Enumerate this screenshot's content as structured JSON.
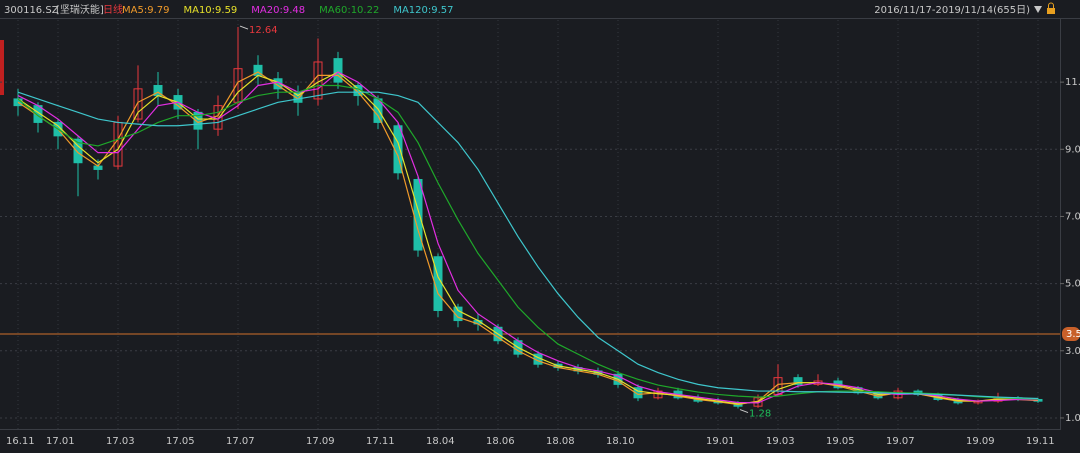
{
  "header": {
    "code": "300116.SZ",
    "stock_name": "[坚瑞沃能]",
    "period": "日线",
    "range": "2016/11/17-2019/11/14(655日)"
  },
  "chart_data": {
    "type": "candlestick",
    "categories": [
      "16.11",
      null,
      "17.01",
      null,
      null,
      "17.03",
      null,
      null,
      "17.05",
      null,
      null,
      "17.07",
      null,
      null,
      null,
      "17.09",
      null,
      null,
      "17.11",
      null,
      null,
      "18.04",
      null,
      null,
      "18.06",
      null,
      null,
      "18.08",
      null,
      null,
      "18.10",
      null,
      null,
      null,
      null,
      "19.01",
      null,
      null,
      "19.03",
      null,
      null,
      "19.05",
      null,
      null,
      "19.07",
      null,
      null,
      null,
      "19.09",
      null,
      null,
      "19.11"
    ],
    "open": [
      10.5,
      10.3,
      9.8,
      9.3,
      8.5,
      8.5,
      9.9,
      10.9,
      10.6,
      10.1,
      9.6,
      10.4,
      11.5,
      11.1,
      10.7,
      10.5,
      11.7,
      10.9,
      10.5,
      9.7,
      8.1,
      5.8,
      4.3,
      3.9,
      3.7,
      3.3,
      2.9,
      2.6,
      2.5,
      2.4,
      2.3,
      1.9,
      1.6,
      1.8,
      1.6,
      1.5,
      1.45,
      1.35,
      1.7,
      2.2,
      2.0,
      2.1,
      1.9,
      1.75,
      1.6,
      1.8,
      1.7,
      1.55,
      1.45,
      1.5,
      1.6,
      1.55
    ],
    "high": [
      10.8,
      10.4,
      9.9,
      9.4,
      8.7,
      10.0,
      11.5,
      11.3,
      10.8,
      10.2,
      10.6,
      12.64,
      11.8,
      11.3,
      10.9,
      12.3,
      11.9,
      11.0,
      10.6,
      9.8,
      8.2,
      5.9,
      4.4,
      4.1,
      3.8,
      3.4,
      3.0,
      2.7,
      2.6,
      2.5,
      2.4,
      2.0,
      1.9,
      1.9,
      1.7,
      1.6,
      1.5,
      1.7,
      2.6,
      2.3,
      2.3,
      2.2,
      1.95,
      1.8,
      1.9,
      1.85,
      1.75,
      1.6,
      1.55,
      1.75,
      1.65,
      1.6
    ],
    "low": [
      10.0,
      9.5,
      9.0,
      7.6,
      8.1,
      8.4,
      9.8,
      10.3,
      9.9,
      9.0,
      9.4,
      10.2,
      10.9,
      10.5,
      10.0,
      10.3,
      10.8,
      10.3,
      9.6,
      8.1,
      5.8,
      4.0,
      3.7,
      3.6,
      3.2,
      2.8,
      2.5,
      2.4,
      2.3,
      2.2,
      1.9,
      1.5,
      1.55,
      1.55,
      1.45,
      1.4,
      1.28,
      1.3,
      1.65,
      1.9,
      1.95,
      1.85,
      1.7,
      1.55,
      1.55,
      1.65,
      1.5,
      1.4,
      1.4,
      1.45,
      1.5,
      1.45
    ],
    "close": [
      10.3,
      9.8,
      9.4,
      8.6,
      8.4,
      9.8,
      10.8,
      10.6,
      10.2,
      9.6,
      10.3,
      11.4,
      11.2,
      10.8,
      10.4,
      11.6,
      11.0,
      10.6,
      9.8,
      8.3,
      6.0,
      4.2,
      3.9,
      3.8,
      3.3,
      2.9,
      2.6,
      2.5,
      2.4,
      2.3,
      2.0,
      1.6,
      1.8,
      1.6,
      1.5,
      1.45,
      1.35,
      1.6,
      2.2,
      2.0,
      2.1,
      1.9,
      1.75,
      1.6,
      1.8,
      1.7,
      1.55,
      1.45,
      1.5,
      1.6,
      1.55,
      1.5
    ],
    "up_color": "#e8383d",
    "down_color": "#1fbfa8",
    "series": [
      {
        "name": "MA5:9.79",
        "color": "#f09a2a",
        "values": [
          10.4,
          10.0,
          9.6,
          8.9,
          8.5,
          9.3,
          10.4,
          10.7,
          10.3,
          9.8,
          10.0,
          11.0,
          11.3,
          10.9,
          10.5,
          11.2,
          11.2,
          10.7,
          10.0,
          8.8,
          6.6,
          4.7,
          4.0,
          3.8,
          3.4,
          3.0,
          2.7,
          2.5,
          2.4,
          2.3,
          2.1,
          1.7,
          1.75,
          1.65,
          1.55,
          1.48,
          1.4,
          1.5,
          2.0,
          2.05,
          2.05,
          1.95,
          1.8,
          1.65,
          1.75,
          1.72,
          1.6,
          1.5,
          1.5,
          1.57,
          1.55,
          1.52
        ]
      },
      {
        "name": "MA10:9.59",
        "color": "#e6e02a",
        "values": [
          10.5,
          10.1,
          9.7,
          9.1,
          8.6,
          9.0,
          10.1,
          10.6,
          10.4,
          9.9,
          9.9,
          10.7,
          11.2,
          11.0,
          10.6,
          11.0,
          11.3,
          10.8,
          10.2,
          9.2,
          7.2,
          5.2,
          4.2,
          3.9,
          3.5,
          3.1,
          2.8,
          2.55,
          2.45,
          2.35,
          2.15,
          1.8,
          1.72,
          1.68,
          1.58,
          1.5,
          1.42,
          1.48,
          1.85,
          2.05,
          2.05,
          1.98,
          1.85,
          1.7,
          1.72,
          1.72,
          1.62,
          1.52,
          1.5,
          1.55,
          1.56,
          1.53
        ]
      },
      {
        "name": "MA20:9.48",
        "color": "#e22ee2",
        "values": [
          10.6,
          10.3,
          9.9,
          9.4,
          8.9,
          8.9,
          9.6,
          10.3,
          10.4,
          10.1,
          9.9,
          10.3,
          10.9,
          11.0,
          10.7,
          10.8,
          11.3,
          11.0,
          10.5,
          9.8,
          8.2,
          6.2,
          4.8,
          4.1,
          3.7,
          3.3,
          2.95,
          2.7,
          2.5,
          2.4,
          2.25,
          1.95,
          1.78,
          1.7,
          1.62,
          1.54,
          1.46,
          1.45,
          1.7,
          1.95,
          2.05,
          2.0,
          1.9,
          1.75,
          1.7,
          1.72,
          1.66,
          1.56,
          1.5,
          1.52,
          1.55,
          1.54
        ]
      },
      {
        "name": "MA60:10.22",
        "color": "#1fa82a",
        "values": [
          10.5,
          10.0,
          9.6,
          9.2,
          9.1,
          9.3,
          9.5,
          9.8,
          10.0,
          10.0,
          10.1,
          10.4,
          10.6,
          10.7,
          10.7,
          10.9,
          10.9,
          10.8,
          10.5,
          10.1,
          9.2,
          8.0,
          6.9,
          5.9,
          5.1,
          4.3,
          3.7,
          3.2,
          2.9,
          2.6,
          2.35,
          2.15,
          1.98,
          1.87,
          1.77,
          1.7,
          1.65,
          1.62,
          1.65,
          1.72,
          1.78,
          1.8,
          1.8,
          1.78,
          1.75,
          1.74,
          1.72,
          1.68,
          1.63,
          1.6,
          1.58,
          1.56
        ]
      },
      {
        "name": "MA120:9.57",
        "color": "#3ec6cc",
        "values": [
          10.7,
          10.5,
          10.3,
          10.1,
          9.9,
          9.8,
          9.75,
          9.7,
          9.7,
          9.75,
          9.8,
          10.0,
          10.2,
          10.4,
          10.5,
          10.6,
          10.7,
          10.7,
          10.7,
          10.6,
          10.4,
          9.8,
          9.2,
          8.4,
          7.4,
          6.4,
          5.5,
          4.7,
          4.0,
          3.4,
          3.0,
          2.6,
          2.35,
          2.15,
          2.0,
          1.9,
          1.85,
          1.8,
          1.8,
          1.78,
          1.78,
          1.77,
          1.76,
          1.75,
          1.73,
          1.72,
          1.7,
          1.68,
          1.65,
          1.62,
          1.6,
          1.58
        ]
      }
    ],
    "ylim": [
      0.79,
      12.85
    ],
    "yticks": [
      {
        "value": 1,
        "label": "1.00"
      },
      {
        "value": 3,
        "label": "3.00"
      },
      {
        "value": 5,
        "label": "5.00"
      },
      {
        "value": 7,
        "label": "7.00"
      },
      {
        "value": 9,
        "label": "9.00"
      },
      {
        "value": 11,
        "label": "11.0"
      }
    ],
    "price_line": 3.5,
    "grid": true
  }
}
